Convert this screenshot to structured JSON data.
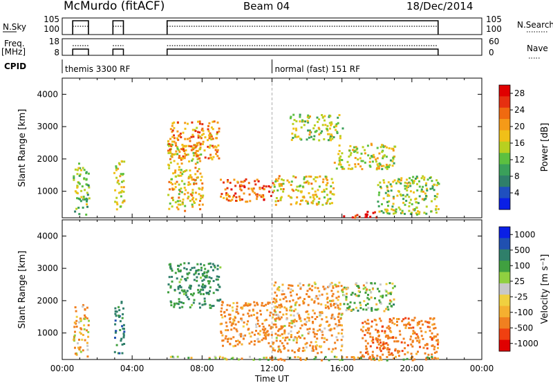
{
  "header": {
    "station": "McMurdo (fitACF)",
    "beam": "Beam 04",
    "date": "18/Dec/2014"
  },
  "labels": {
    "nsky": "N.Sky",
    "freq_line1": "Freq.",
    "freq_line2": "[MHz]",
    "cpid": "CPID",
    "nsearch": "N.Search",
    "nave": "Nave"
  },
  "cpid_segments": [
    {
      "text": "themis 3300 RF",
      "start_hour": 0
    },
    {
      "text": "normal (fast) 151 RF",
      "start_hour": 12
    }
  ],
  "colors": {
    "power": [
      "#0a1fe6",
      "#1f4fbf",
      "#2f7f6a",
      "#3aa05a",
      "#5cc040",
      "#b8d020",
      "#f0c018",
      "#f59a18",
      "#f06a10",
      "#e63010",
      "#e00000"
    ],
    "velocity": [
      "#e00000",
      "#f04010",
      "#f08020",
      "#f5b030",
      "#f0d040",
      "#c8c8c8",
      "#90d040",
      "#40a040",
      "#2f7f6a",
      "#2050b0",
      "#0a1fe6"
    ]
  },
  "chart_data": [
    {
      "type": "line",
      "name": "N.Sky / N.Search",
      "x_range": [
        0,
        24
      ],
      "left_ticks": [
        "10^5",
        "10^0"
      ],
      "right_ticks": [
        "10^5",
        "10^0"
      ],
      "operating_intervals": [
        [
          0.6,
          1.5
        ],
        [
          2.9,
          3.5
        ],
        [
          6.0,
          21.5
        ]
      ]
    },
    {
      "type": "line",
      "name": "Freq / Nave",
      "left_ticks": [
        "18",
        "8"
      ],
      "right_ticks": [
        "60",
        "0"
      ],
      "operating_intervals": [
        [
          0.6,
          1.5
        ],
        [
          2.9,
          3.5
        ],
        [
          6.0,
          21.5
        ]
      ]
    },
    {
      "type": "heatmap",
      "quantity": "Power",
      "ylabel": "Slant Range [km]",
      "ylim": [
        180,
        4500
      ],
      "yticks": [
        1000,
        2000,
        3000,
        4000
      ],
      "colorbar_label": "Power [dB]",
      "colorbar_ticks": [
        4,
        8,
        12,
        16,
        20,
        24,
        28
      ],
      "colorbar_range": [
        0,
        30
      ],
      "scatter_regions": [
        {
          "x": [
            0.6,
            1.5
          ],
          "y": [
            300,
            1900
          ],
          "value": 12
        },
        {
          "x": [
            2.9,
            3.5
          ],
          "y": [
            400,
            2000
          ],
          "value": 16
        },
        {
          "x": [
            6.0,
            8.0
          ],
          "y": [
            400,
            2500
          ],
          "value": 18
        },
        {
          "x": [
            6.0,
            9.0
          ],
          "y": [
            2000,
            3200
          ],
          "value": 22
        },
        {
          "x": [
            9.0,
            12.0
          ],
          "y": [
            700,
            1400
          ],
          "value": 24
        },
        {
          "x": [
            12.0,
            15.5
          ],
          "y": [
            600,
            1500
          ],
          "value": 18
        },
        {
          "x": [
            13.0,
            16.0
          ],
          "y": [
            2600,
            3400
          ],
          "value": 14
        },
        {
          "x": [
            15.5,
            19.0
          ],
          "y": [
            1700,
            2500
          ],
          "value": 16
        },
        {
          "x": [
            16.0,
            18.0
          ],
          "y": [
            200,
            400
          ],
          "value": 29
        },
        {
          "x": [
            18.0,
            21.5
          ],
          "y": [
            300,
            1500
          ],
          "value": 14
        }
      ]
    },
    {
      "type": "heatmap",
      "quantity": "Velocity",
      "ylabel": "Slant Range [km]",
      "xlabel": "Time UT",
      "ylim": [
        180,
        4500
      ],
      "yticks": [
        1000,
        2000,
        3000,
        4000
      ],
      "xticks": [
        "00:00",
        "04:00",
        "08:00",
        "12:00",
        "16:00",
        "20:00",
        "00:00"
      ],
      "colorbar_label": "Velocity [m s⁻¹]",
      "colorbar_ticks": [
        "1000",
        "500",
        "100",
        "25",
        "-25",
        "-100",
        "-500",
        "-1000"
      ],
      "scatter_regions": [
        {
          "x": [
            0.6,
            1.5
          ],
          "y": [
            300,
            1900
          ],
          "value": -100
        },
        {
          "x": [
            2.9,
            3.5
          ],
          "y": [
            400,
            2000
          ],
          "value": 300
        },
        {
          "x": [
            6.0,
            9.0
          ],
          "y": [
            1800,
            3200
          ],
          "value": 200
        },
        {
          "x": [
            9.0,
            12.0
          ],
          "y": [
            600,
            2000
          ],
          "value": -150
        },
        {
          "x": [
            12.0,
            16.0
          ],
          "y": [
            400,
            2600
          ],
          "value": -120
        },
        {
          "x": [
            16.0,
            19.0
          ],
          "y": [
            1700,
            2600
          ],
          "value": 60
        },
        {
          "x": [
            17.0,
            21.5
          ],
          "y": [
            200,
            1500
          ],
          "value": -200
        },
        {
          "x": [
            6.0,
            21.5
          ],
          "y": [
            180,
            300
          ],
          "value": 0
        }
      ]
    }
  ]
}
